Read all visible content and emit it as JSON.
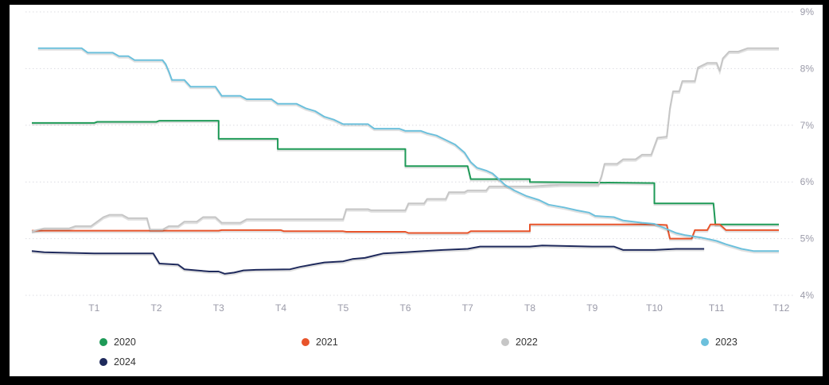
{
  "chart_data": {
    "type": "line",
    "title": "",
    "xlabel": "",
    "ylabel": "",
    "x_ticks": [
      "T1",
      "T2",
      "T3",
      "T4",
      "T5",
      "T6",
      "T7",
      "T8",
      "T9",
      "T10",
      "T11",
      "T12"
    ],
    "y_ticks": [
      "4%",
      "5%",
      "6%",
      "7%",
      "8%",
      "9%"
    ],
    "ylim": [
      4,
      9
    ],
    "xlim": [
      0,
      12
    ],
    "grid": "horizontal-dotted",
    "legend_position": "bottom",
    "series": [
      {
        "name": "2020",
        "color": "#1e9a57",
        "points": [
          [
            0,
            7.04
          ],
          [
            1.0,
            7.04
          ],
          [
            1.05,
            7.06
          ],
          [
            2.0,
            7.06
          ],
          [
            2.05,
            7.08
          ],
          [
            3.0,
            7.08
          ],
          [
            3.0,
            6.76
          ],
          [
            3.95,
            6.76
          ],
          [
            3.95,
            6.58
          ],
          [
            6.0,
            6.58
          ],
          [
            6.0,
            6.28
          ],
          [
            7.0,
            6.28
          ],
          [
            7.05,
            6.05
          ],
          [
            8.0,
            6.05
          ],
          [
            8.0,
            6.0
          ],
          [
            10.0,
            5.98
          ],
          [
            10.0,
            5.62
          ],
          [
            10.95,
            5.62
          ],
          [
            10.98,
            5.25
          ],
          [
            12.0,
            5.25
          ]
        ]
      },
      {
        "name": "2021",
        "color": "#e8542b",
        "points": [
          [
            0,
            5.14
          ],
          [
            3.0,
            5.14
          ],
          [
            3.05,
            5.15
          ],
          [
            4.0,
            5.15
          ],
          [
            4.05,
            5.13
          ],
          [
            5.0,
            5.13
          ],
          [
            5.05,
            5.12
          ],
          [
            6.0,
            5.12
          ],
          [
            6.05,
            5.1
          ],
          [
            7.0,
            5.1
          ],
          [
            7.05,
            5.13
          ],
          [
            8.0,
            5.13
          ],
          [
            8.0,
            5.25
          ],
          [
            9.0,
            5.25
          ],
          [
            10.0,
            5.25
          ],
          [
            10.2,
            5.24
          ],
          [
            10.25,
            5.0
          ],
          [
            10.6,
            5.0
          ],
          [
            10.65,
            5.15
          ],
          [
            10.85,
            5.15
          ],
          [
            10.9,
            5.25
          ],
          [
            11.05,
            5.25
          ],
          [
            11.15,
            5.15
          ],
          [
            12.0,
            5.15
          ]
        ]
      },
      {
        "name": "2022",
        "color": "#c6c6c6",
        "points": [
          [
            0,
            5.13
          ],
          [
            0.2,
            5.18
          ],
          [
            0.6,
            5.18
          ],
          [
            0.7,
            5.22
          ],
          [
            0.95,
            5.22
          ],
          [
            1.05,
            5.3
          ],
          [
            1.15,
            5.38
          ],
          [
            1.25,
            5.42
          ],
          [
            1.45,
            5.42
          ],
          [
            1.55,
            5.36
          ],
          [
            1.85,
            5.36
          ],
          [
            1.9,
            5.16
          ],
          [
            2.1,
            5.16
          ],
          [
            2.2,
            5.22
          ],
          [
            2.35,
            5.22
          ],
          [
            2.45,
            5.3
          ],
          [
            2.65,
            5.3
          ],
          [
            2.75,
            5.38
          ],
          [
            2.95,
            5.38
          ],
          [
            3.05,
            5.28
          ],
          [
            3.35,
            5.28
          ],
          [
            3.45,
            5.34
          ],
          [
            5.0,
            5.34
          ],
          [
            5.05,
            5.52
          ],
          [
            5.4,
            5.52
          ],
          [
            5.45,
            5.5
          ],
          [
            6.0,
            5.5
          ],
          [
            6.05,
            5.62
          ],
          [
            6.3,
            5.62
          ],
          [
            6.35,
            5.7
          ],
          [
            6.65,
            5.7
          ],
          [
            6.7,
            5.82
          ],
          [
            6.95,
            5.82
          ],
          [
            7.0,
            5.85
          ],
          [
            7.3,
            5.85
          ],
          [
            7.35,
            5.92
          ],
          [
            8.0,
            5.92
          ],
          [
            8.5,
            5.95
          ],
          [
            9.1,
            5.95
          ],
          [
            9.15,
            6.1
          ],
          [
            9.2,
            6.32
          ],
          [
            9.4,
            6.32
          ],
          [
            9.5,
            6.4
          ],
          [
            9.7,
            6.4
          ],
          [
            9.8,
            6.48
          ],
          [
            9.95,
            6.48
          ],
          [
            10.05,
            6.78
          ],
          [
            10.2,
            6.8
          ],
          [
            10.25,
            7.3
          ],
          [
            10.3,
            7.6
          ],
          [
            10.4,
            7.6
          ],
          [
            10.45,
            7.78
          ],
          [
            10.65,
            7.78
          ],
          [
            10.7,
            8.02
          ],
          [
            10.85,
            8.1
          ],
          [
            11.0,
            8.1
          ],
          [
            11.05,
            7.96
          ],
          [
            11.1,
            8.18
          ],
          [
            11.2,
            8.3
          ],
          [
            11.35,
            8.3
          ],
          [
            11.5,
            8.36
          ],
          [
            12.0,
            8.36
          ]
        ]
      },
      {
        "name": "2023",
        "color": "#6cc0dc",
        "points": [
          [
            0.1,
            8.36
          ],
          [
            0.8,
            8.36
          ],
          [
            0.9,
            8.28
          ],
          [
            1.3,
            8.28
          ],
          [
            1.4,
            8.22
          ],
          [
            1.55,
            8.22
          ],
          [
            1.65,
            8.15
          ],
          [
            2.1,
            8.15
          ],
          [
            2.15,
            8.08
          ],
          [
            2.2,
            7.95
          ],
          [
            2.25,
            7.8
          ],
          [
            2.45,
            7.8
          ],
          [
            2.55,
            7.68
          ],
          [
            2.95,
            7.68
          ],
          [
            3.05,
            7.52
          ],
          [
            3.35,
            7.52
          ],
          [
            3.45,
            7.46
          ],
          [
            3.85,
            7.46
          ],
          [
            3.95,
            7.38
          ],
          [
            4.25,
            7.38
          ],
          [
            4.4,
            7.3
          ],
          [
            4.55,
            7.25
          ],
          [
            4.7,
            7.15
          ],
          [
            4.85,
            7.1
          ],
          [
            5.0,
            7.02
          ],
          [
            5.4,
            7.02
          ],
          [
            5.5,
            6.94
          ],
          [
            5.9,
            6.94
          ],
          [
            6.0,
            6.9
          ],
          [
            6.25,
            6.9
          ],
          [
            6.35,
            6.86
          ],
          [
            6.5,
            6.82
          ],
          [
            6.65,
            6.74
          ],
          [
            6.8,
            6.66
          ],
          [
            6.95,
            6.52
          ],
          [
            7.05,
            6.35
          ],
          [
            7.15,
            6.25
          ],
          [
            7.3,
            6.2
          ],
          [
            7.4,
            6.15
          ],
          [
            7.5,
            6.05
          ],
          [
            7.6,
            5.95
          ],
          [
            7.75,
            5.85
          ],
          [
            7.95,
            5.75
          ],
          [
            8.15,
            5.68
          ],
          [
            8.3,
            5.6
          ],
          [
            8.55,
            5.55
          ],
          [
            8.75,
            5.5
          ],
          [
            8.95,
            5.46
          ],
          [
            9.05,
            5.4
          ],
          [
            9.35,
            5.38
          ],
          [
            9.5,
            5.32
          ],
          [
            9.8,
            5.28
          ],
          [
            10.0,
            5.26
          ],
          [
            10.35,
            5.1
          ],
          [
            10.5,
            5.06
          ],
          [
            10.75,
            5.02
          ],
          [
            11.0,
            4.96
          ],
          [
            11.15,
            4.9
          ],
          [
            11.4,
            4.82
          ],
          [
            11.6,
            4.78
          ],
          [
            12.0,
            4.78
          ]
        ]
      },
      {
        "name": "2024",
        "color": "#1f2a5c",
        "points": [
          [
            0,
            4.78
          ],
          [
            0.2,
            4.76
          ],
          [
            1.0,
            4.74
          ],
          [
            1.95,
            4.74
          ],
          [
            2.05,
            4.56
          ],
          [
            2.35,
            4.54
          ],
          [
            2.45,
            4.46
          ],
          [
            2.65,
            4.44
          ],
          [
            2.85,
            4.42
          ],
          [
            3.0,
            4.42
          ],
          [
            3.1,
            4.38
          ],
          [
            3.25,
            4.4
          ],
          [
            3.4,
            4.44
          ],
          [
            3.6,
            4.45
          ],
          [
            4.15,
            4.46
          ],
          [
            4.3,
            4.5
          ],
          [
            4.5,
            4.54
          ],
          [
            4.7,
            4.58
          ],
          [
            5.0,
            4.6
          ],
          [
            5.15,
            4.64
          ],
          [
            5.35,
            4.66
          ],
          [
            5.5,
            4.7
          ],
          [
            5.65,
            4.74
          ],
          [
            6.0,
            4.76
          ],
          [
            6.3,
            4.78
          ],
          [
            6.6,
            4.8
          ],
          [
            7.0,
            4.82
          ],
          [
            7.2,
            4.86
          ],
          [
            7.6,
            4.86
          ],
          [
            8.0,
            4.86
          ],
          [
            8.2,
            4.88
          ],
          [
            9.0,
            4.86
          ],
          [
            9.35,
            4.86
          ],
          [
            9.5,
            4.8
          ],
          [
            10.0,
            4.8
          ],
          [
            10.35,
            4.82
          ],
          [
            10.8,
            4.82
          ]
        ]
      }
    ]
  }
}
